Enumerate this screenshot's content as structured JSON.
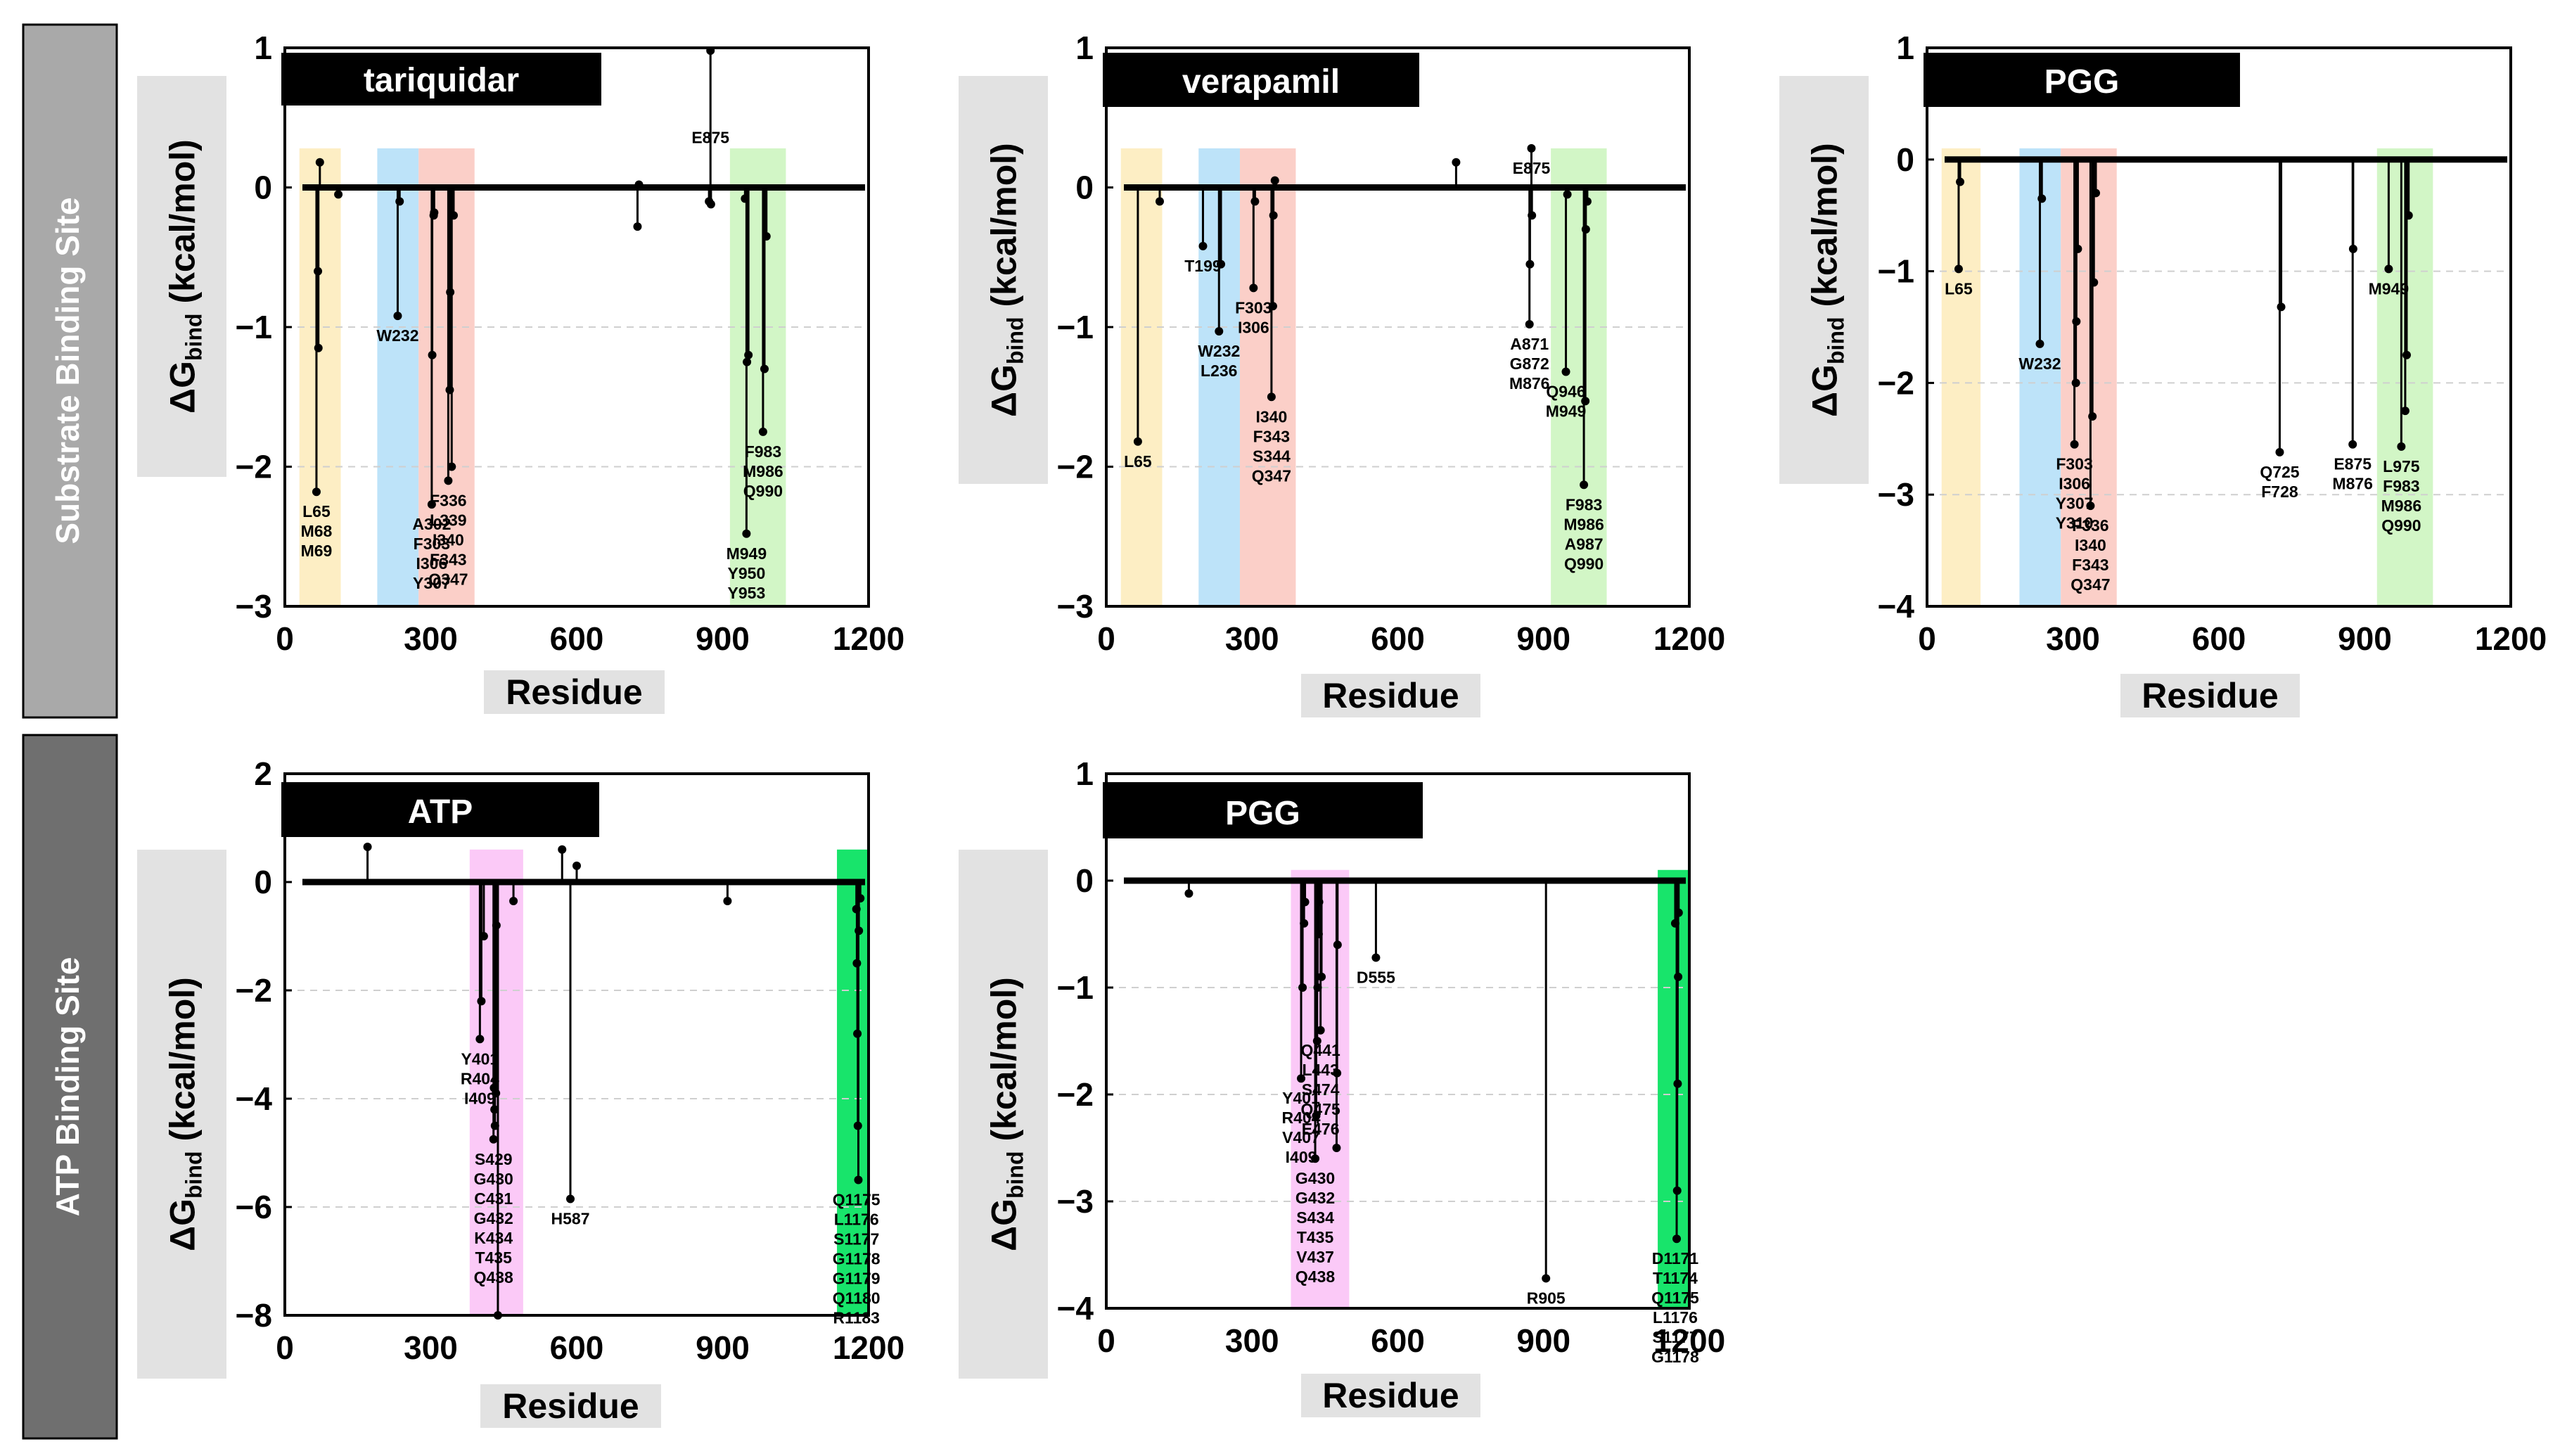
{
  "side_labels": [
    "Substrate Binding Site",
    "ATP Binding Site"
  ],
  "colors": {
    "yellow": "#fdeec4",
    "blue": "#bde3f9",
    "red": "#fbcfc8",
    "lightgreen": "#d2f6c6",
    "magenta": "#fbc9f7",
    "green": "#18e46b",
    "side_top": "#a9a9a9",
    "side_bottom": "#6f6f6f",
    "axis_label_bg": "#e2e2e2"
  },
  "chart_data": [
    {
      "type": "line",
      "title": "tariquidar",
      "xlabel": "Residue",
      "ylabel": "ΔG",
      "ylabel_sub": "bind",
      "ylabel_unit": " (kcal/mol)",
      "xlim": [
        0,
        1200
      ],
      "ylim": [
        -3,
        1
      ],
      "xticks": [
        0,
        300,
        600,
        900,
        1200
      ],
      "yticks": [
        1,
        0,
        -1,
        -2,
        -3
      ],
      "highlights": [
        {
          "x0": 30,
          "x1": 115,
          "color": "yellow"
        },
        {
          "x0": 190,
          "x1": 275,
          "color": "blue"
        },
        {
          "x0": 275,
          "x1": 390,
          "color": "red"
        },
        {
          "x0": 915,
          "x1": 1030,
          "color": "lightgreen"
        }
      ],
      "series": [
        {
          "name": "ΔGbind",
          "x": [
            65,
            68,
            69,
            72,
            110,
            232,
            236,
            302,
            303,
            306,
            307,
            336,
            339,
            340,
            343,
            347,
            725,
            728,
            872,
            875,
            876,
            946,
            949,
            950,
            953,
            983,
            986,
            990
          ],
          "values": [
            -2.18,
            -0.6,
            -1.15,
            0.18,
            -0.05,
            -0.92,
            -0.1,
            -2.27,
            -1.2,
            -0.2,
            -0.18,
            -2.1,
            -1.45,
            -0.75,
            -2.0,
            -0.2,
            -0.28,
            0.02,
            -0.1,
            0.98,
            -0.12,
            -0.08,
            -2.48,
            -1.25,
            -1.2,
            -1.75,
            -1.3,
            -0.35
          ]
        }
      ],
      "annotations": [
        {
          "text": "L65\nM68\nM69",
          "x": 65,
          "y": -2.18
        },
        {
          "text": "W232",
          "x": 232,
          "y": -0.92
        },
        {
          "text": "A302\nF303\nI306\nY307",
          "x": 302,
          "y": -2.27
        },
        {
          "text": "F336\nL339\nI340\nF343\nQ347",
          "x": 336,
          "y": -2.1
        },
        {
          "text": "E875",
          "x": 875,
          "y": 0.5
        },
        {
          "text": "M949\nY950\nY953",
          "x": 949,
          "y": -2.48
        },
        {
          "text": "F983\nM986\nQ990",
          "x": 983,
          "y": -1.75
        }
      ]
    },
    {
      "type": "line",
      "title": "verapamil",
      "xlabel": "Residue",
      "ylabel": "ΔG",
      "ylabel_sub": "bind",
      "ylabel_unit": " (kcal/mol)",
      "xlim": [
        0,
        1200
      ],
      "ylim": [
        -3,
        1
      ],
      "xticks": [
        0,
        300,
        600,
        900,
        1200
      ],
      "yticks": [
        1,
        0,
        -1,
        -2,
        -3
      ],
      "highlights": [
        {
          "x0": 30,
          "x1": 115,
          "color": "yellow"
        },
        {
          "x0": 190,
          "x1": 275,
          "color": "blue"
        },
        {
          "x0": 275,
          "x1": 390,
          "color": "red"
        },
        {
          "x0": 915,
          "x1": 1030,
          "color": "lightgreen"
        }
      ],
      "series": [
        {
          "name": "ΔGbind",
          "x": [
            65,
            110,
            199,
            232,
            236,
            303,
            306,
            340,
            343,
            344,
            347,
            720,
            871,
            872,
            875,
            876,
            946,
            949,
            983,
            986,
            987,
            990
          ],
          "values": [
            -1.82,
            -0.1,
            -0.42,
            -1.03,
            -0.55,
            -0.72,
            -0.1,
            -1.5,
            -0.85,
            -0.2,
            0.05,
            0.18,
            -0.98,
            -0.55,
            0.28,
            -0.2,
            -1.32,
            -0.05,
            -2.13,
            -1.53,
            -0.3,
            -0.1
          ]
        }
      ],
      "annotations": [
        {
          "text": "L65",
          "x": 65,
          "y": -1.82
        },
        {
          "text": "T199",
          "x": 199,
          "y": -0.42
        },
        {
          "text": "F303\nI306",
          "x": 303,
          "y": -0.72
        },
        {
          "text": "W232\nL236",
          "x": 232,
          "y": -1.03
        },
        {
          "text": "I340\nF343\nS344\nQ347",
          "x": 340,
          "y": -1.5
        },
        {
          "text": "E875",
          "x": 875,
          "y": 0.28
        },
        {
          "text": "A871\nG872\nM876",
          "x": 871,
          "y": -0.98
        },
        {
          "text": "Q946\nM949",
          "x": 946,
          "y": -1.32
        },
        {
          "text": "F983\nM986\nA987\nQ990",
          "x": 983,
          "y": -2.13
        }
      ]
    },
    {
      "type": "line",
      "title": "PGG",
      "xlabel": "Residue",
      "ylabel": "ΔG",
      "ylabel_sub": "bind",
      "ylabel_unit": " (kcal/mol)",
      "xlim": [
        0,
        1200
      ],
      "ylim": [
        -4,
        1
      ],
      "xticks": [
        0,
        300,
        600,
        900,
        1200
      ],
      "yticks": [
        1,
        0,
        -1,
        -2,
        -3,
        -4
      ],
      "highlights": [
        {
          "x0": 30,
          "x1": 110,
          "color": "yellow"
        },
        {
          "x0": 190,
          "x1": 275,
          "color": "blue"
        },
        {
          "x0": 275,
          "x1": 390,
          "color": "red"
        },
        {
          "x0": 925,
          "x1": 1040,
          "color": "lightgreen"
        }
      ],
      "series": [
        {
          "name": "ΔGbind",
          "x": [
            65,
            68,
            232,
            236,
            303,
            306,
            307,
            310,
            336,
            340,
            343,
            347,
            725,
            728,
            875,
            876,
            949,
            975,
            983,
            986,
            990
          ],
          "values": [
            -0.98,
            -0.2,
            -1.65,
            -0.35,
            -2.55,
            -2.0,
            -1.45,
            -0.8,
            -3.1,
            -2.3,
            -1.1,
            -0.3,
            -2.62,
            -1.32,
            -2.55,
            -0.8,
            -0.98,
            -2.57,
            -2.25,
            -1.75,
            -0.5
          ]
        }
      ],
      "annotations": [
        {
          "text": "L65",
          "x": 65,
          "y": -0.98
        },
        {
          "text": "W232",
          "x": 232,
          "y": -1.65
        },
        {
          "text": "F303\nI306\nY307\nY310",
          "x": 303,
          "y": -2.55
        },
        {
          "text": "F336\nI340\nF343\nQ347",
          "x": 336,
          "y": -3.1
        },
        {
          "text": "Q725\nF728",
          "x": 725,
          "y": -2.62
        },
        {
          "text": "E875\nM876",
          "x": 875,
          "y": -2.55
        },
        {
          "text": "M949",
          "x": 949,
          "y": -0.98
        },
        {
          "text": "L975\nF983\nM986\nQ990",
          "x": 975,
          "y": -2.57
        }
      ]
    },
    {
      "type": "line",
      "title": "ATP",
      "xlabel": "Residue",
      "ylabel": "ΔG",
      "ylabel_sub": "bind",
      "ylabel_unit": " (kcal/mol)",
      "xlim": [
        0,
        1200
      ],
      "ylim": [
        -8,
        2
      ],
      "xticks": [
        0,
        300,
        600,
        900,
        1200
      ],
      "yticks": [
        2,
        0,
        -2,
        -4,
        -6,
        -8
      ],
      "highlights": [
        {
          "x0": 380,
          "x1": 490,
          "color": "magenta"
        },
        {
          "x0": 1135,
          "x1": 1200,
          "color": "green"
        }
      ],
      "series": [
        {
          "name": "ΔGbind",
          "x": [
            170,
            401,
            404,
            409,
            429,
            430,
            431,
            432,
            434,
            435,
            438,
            470,
            570,
            587,
            600,
            910,
            1175,
            1176,
            1177,
            1178,
            1179,
            1180,
            1183
          ],
          "values": [
            0.65,
            -2.9,
            -2.2,
            -1.0,
            -4.75,
            -3.8,
            -4.2,
            -4.5,
            -3.9,
            -0.8,
            -8.0,
            -0.35,
            0.6,
            -5.85,
            0.3,
            -0.35,
            -0.5,
            -1.5,
            -2.8,
            -4.5,
            -5.5,
            -0.9,
            -0.3
          ]
        }
      ],
      "annotations": [
        {
          "text": "Y401\nR404\nI409",
          "x": 401,
          "y": -2.9
        },
        {
          "text": "S429\nG430\nC431\nG432\nK434\nT435\nQ438",
          "x": 429,
          "y": -4.75
        },
        {
          "text": "H587",
          "x": 587,
          "y": -5.85
        },
        {
          "text": "Q1175\nL1176\nS1177\nG1178\nG1179\nQ1180\nR1183",
          "x": 1175,
          "y": -5.5
        }
      ]
    },
    {
      "type": "line",
      "title": "PGG",
      "xlabel": "Residue",
      "ylabel": "ΔG",
      "ylabel_sub": "bind",
      "ylabel_unit": " (kcal/mol)",
      "xlim": [
        0,
        1200
      ],
      "ylim": [
        -4,
        1
      ],
      "xticks": [
        0,
        300,
        600,
        900,
        1200
      ],
      "yticks": [
        1,
        0,
        -1,
        -2,
        -3,
        -4
      ],
      "highlights": [
        {
          "x0": 380,
          "x1": 500,
          "color": "magenta"
        },
        {
          "x0": 1135,
          "x1": 1200,
          "color": "green"
        }
      ],
      "series": [
        {
          "name": "ΔGbind",
          "x": [
            170,
            401,
            404,
            407,
            409,
            430,
            432,
            434,
            435,
            437,
            438,
            441,
            443,
            474,
            475,
            476,
            555,
            905,
            1171,
            1174,
            1175,
            1176,
            1177,
            1178
          ],
          "values": [
            -0.12,
            -1.85,
            -1.0,
            -0.4,
            -0.2,
            -2.6,
            -2.2,
            -1.5,
            -1.0,
            -0.5,
            -0.2,
            -1.4,
            -0.9,
            -2.5,
            -1.8,
            -0.6,
            -0.72,
            -3.72,
            -0.4,
            -3.35,
            -2.9,
            -1.9,
            -0.9,
            -0.3
          ]
        }
      ],
      "annotations": [
        {
          "text": "D555",
          "x": 555,
          "y": -0.72
        },
        {
          "text": "Y401\nR404\nV407\nI409",
          "x": 401,
          "y": -1.85
        },
        {
          "text": "G430\nG432\nS434\nT435\nV437\nQ438",
          "x": 430,
          "y": -2.6
        },
        {
          "text": "Q441\nL443\nS474\nQ475\nE476",
          "x": 441,
          "y": -1.4
        },
        {
          "text": "R905",
          "x": 905,
          "y": -3.72
        },
        {
          "text": "D1171\nT1174\nQ1175\nL1176\nS1177\nG1178",
          "x": 1171,
          "y": -3.35
        }
      ]
    }
  ]
}
